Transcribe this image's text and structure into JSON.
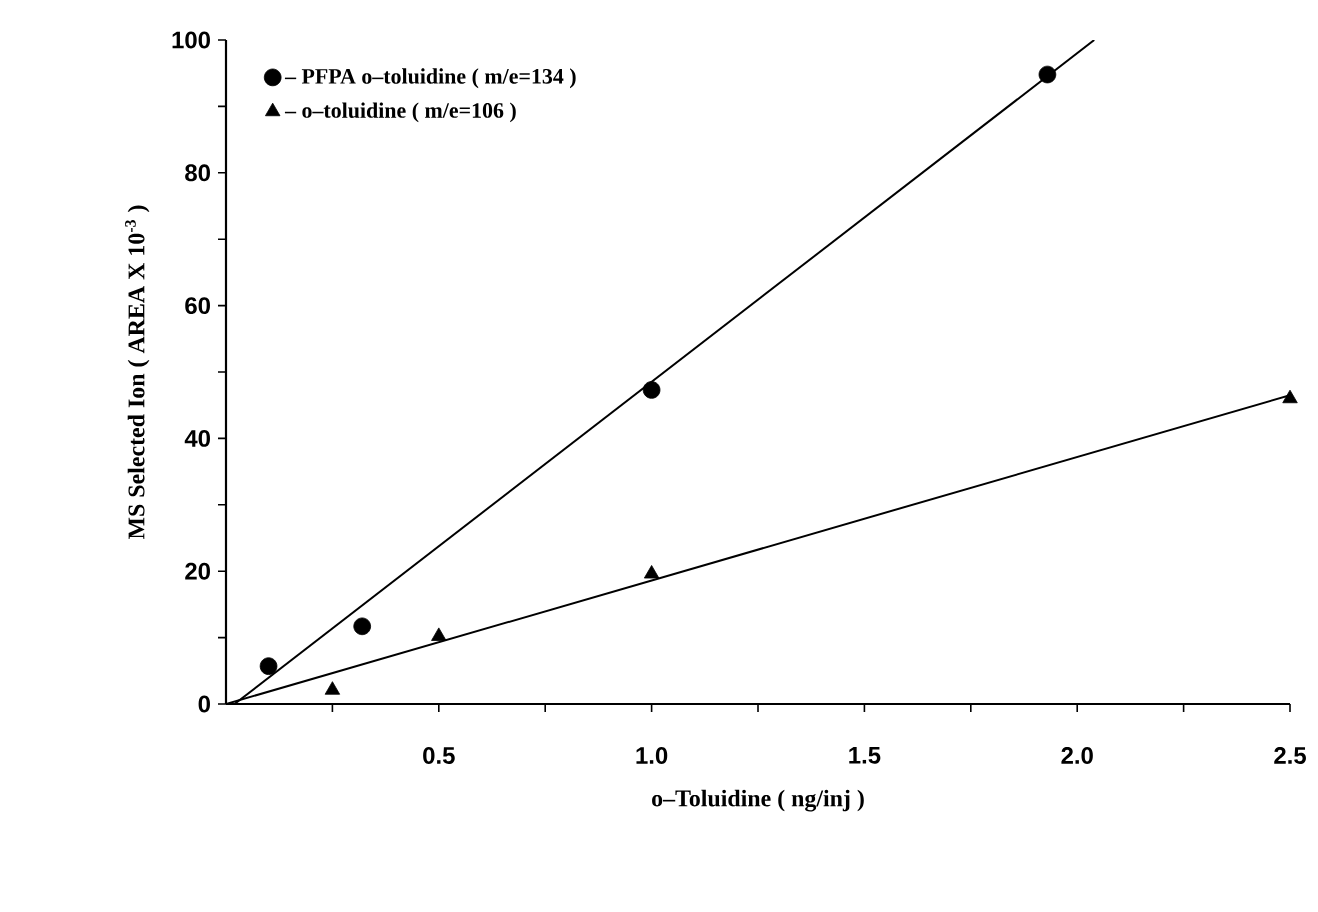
{
  "chart_data": {
    "type": "scatter",
    "xlabel": "o–Toluidine ( ng/inj )",
    "ylabel": "MS Selected Ion ( AREA X 10$^{-3}$ )",
    "xlim": [
      0,
      2.5
    ],
    "ylim": [
      0,
      100
    ],
    "xticks": [
      {
        "value": 0.25,
        "label": null
      },
      0.5,
      {
        "value": 0.75,
        "label": null
      },
      "1.0",
      {
        "value": 1.25,
        "label": null
      },
      1.5,
      {
        "value": 1.75,
        "label": null
      },
      "2.0",
      {
        "value": 2.25,
        "label": null
      },
      2.5
    ],
    "yticks": [
      0,
      {
        "value": 10,
        "label": null
      },
      20,
      {
        "value": 30,
        "label": null
      },
      40,
      {
        "value": 50,
        "label": null
      },
      60,
      {
        "value": 70,
        "label": null
      },
      80,
      {
        "value": 90,
        "label": null
      },
      100
    ],
    "legend": "top left",
    "grid": false,
    "series": [
      {
        "name": "– PFPA o–toluidine ( m/e=134 )",
        "marker": "circle",
        "color": "#000000",
        "x": [
          0.1,
          0.32,
          1.0,
          1.93
        ],
        "values": [
          5.7,
          11.7,
          47.3,
          94.8
        ]
      },
      {
        "name": "– o–toluidine ( m/e=106 )",
        "marker": "triangle",
        "color": "#000000",
        "x": [
          0.25,
          0.5,
          1.0,
          2.5
        ],
        "values": [
          2.1,
          10.2,
          19.6,
          46
        ]
      },
      {
        "type": "line",
        "color": "#000000",
        "x": [
          0.02,
          2.04
        ],
        "values": [
          0,
          100
        ]
      },
      {
        "type": "line",
        "color": "#000000",
        "x": [
          0,
          2.5
        ],
        "values": [
          0,
          46.5
        ]
      }
    ]
  }
}
